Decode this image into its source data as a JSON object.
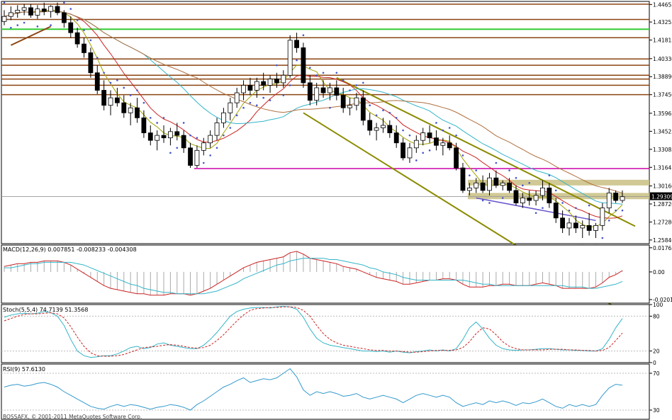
{
  "chart_data": {
    "type": "candlestick",
    "main": {
      "price_axis_ticks": [
        "1.44655",
        "1.43255",
        "1.41815",
        "1.40330",
        "1.38890",
        "1.37450",
        "1.35965",
        "1.34525",
        "1.33085",
        "1.31645",
        "1.30160",
        "1.28720",
        "1.27280",
        "1.25840"
      ],
      "current_price": "1.29309",
      "ylim": [
        1.2555,
        1.449
      ],
      "candles": [
        [
          1.433,
          1.442,
          1.43,
          1.437
        ],
        [
          1.437,
          1.445,
          1.434,
          1.44
        ],
        [
          1.44,
          1.446,
          1.436,
          1.442
        ],
        [
          1.442,
          1.447,
          1.438,
          1.444
        ],
        [
          1.444,
          1.447,
          1.436,
          1.438
        ],
        [
          1.438,
          1.446,
          1.435,
          1.443
        ],
        [
          1.443,
          1.448,
          1.438,
          1.441
        ],
        [
          1.441,
          1.446,
          1.436,
          1.445
        ],
        [
          1.445,
          1.448,
          1.438,
          1.44
        ],
        [
          1.44,
          1.442,
          1.428,
          1.432
        ],
        [
          1.432,
          1.437,
          1.42,
          1.424
        ],
        [
          1.424,
          1.428,
          1.412,
          1.415
        ],
        [
          1.415,
          1.42,
          1.404,
          1.408
        ],
        [
          1.408,
          1.412,
          1.388,
          1.392
        ],
        [
          1.392,
          1.398,
          1.375,
          1.378
        ],
        [
          1.378,
          1.386,
          1.362,
          1.366
        ],
        [
          1.366,
          1.378,
          1.358,
          1.372
        ],
        [
          1.372,
          1.38,
          1.365,
          1.368
        ],
        [
          1.368,
          1.374,
          1.356,
          1.36
        ],
        [
          1.36,
          1.368,
          1.35,
          1.364
        ],
        [
          1.364,
          1.372,
          1.352,
          1.356
        ],
        [
          1.356,
          1.362,
          1.34,
          1.344
        ],
        [
          1.344,
          1.35,
          1.334,
          1.338
        ],
        [
          1.338,
          1.346,
          1.33,
          1.342
        ],
        [
          1.342,
          1.35,
          1.336,
          1.34
        ],
        [
          1.34,
          1.348,
          1.334,
          1.345
        ],
        [
          1.345,
          1.352,
          1.338,
          1.342
        ],
        [
          1.342,
          1.346,
          1.328,
          1.332
        ],
        [
          1.332,
          1.336,
          1.316,
          1.318
        ],
        [
          1.318,
          1.334,
          1.316,
          1.33
        ],
        [
          1.33,
          1.34,
          1.326,
          1.336
        ],
        [
          1.336,
          1.346,
          1.332,
          1.342
        ],
        [
          1.342,
          1.356,
          1.338,
          1.352
        ],
        [
          1.352,
          1.364,
          1.348,
          1.36
        ],
        [
          1.36,
          1.372,
          1.354,
          1.368
        ],
        [
          1.368,
          1.38,
          1.364,
          1.376
        ],
        [
          1.376,
          1.386,
          1.37,
          1.382
        ],
        [
          1.382,
          1.388,
          1.374,
          1.378
        ],
        [
          1.378,
          1.388,
          1.372,
          1.385
        ],
        [
          1.385,
          1.392,
          1.378,
          1.382
        ],
        [
          1.382,
          1.39,
          1.376,
          1.387
        ],
        [
          1.387,
          1.392,
          1.38,
          1.384
        ],
        [
          1.384,
          1.394,
          1.38,
          1.39
        ],
        [
          1.39,
          1.422,
          1.388,
          1.418
        ],
        [
          1.418,
          1.424,
          1.408,
          1.412
        ],
        [
          1.412,
          1.416,
          1.38,
          1.384
        ],
        [
          1.384,
          1.39,
          1.366,
          1.37
        ],
        [
          1.37,
          1.384,
          1.366,
          1.38
        ],
        [
          1.38,
          1.386,
          1.372,
          1.376
        ],
        [
          1.376,
          1.384,
          1.37,
          1.38
        ],
        [
          1.38,
          1.386,
          1.37,
          1.374
        ],
        [
          1.374,
          1.38,
          1.36,
          1.364
        ],
        [
          1.364,
          1.372,
          1.358,
          1.366
        ],
        [
          1.366,
          1.376,
          1.362,
          1.372
        ],
        [
          1.372,
          1.378,
          1.35,
          1.354
        ],
        [
          1.354,
          1.36,
          1.342,
          1.346
        ],
        [
          1.346,
          1.352,
          1.338,
          1.348
        ],
        [
          1.348,
          1.356,
          1.344,
          1.35
        ],
        [
          1.35,
          1.354,
          1.34,
          1.344
        ],
        [
          1.344,
          1.35,
          1.332,
          1.336
        ],
        [
          1.336,
          1.34,
          1.322,
          1.324
        ],
        [
          1.324,
          1.336,
          1.32,
          1.332
        ],
        [
          1.332,
          1.342,
          1.328,
          1.338
        ],
        [
          1.338,
          1.348,
          1.334,
          1.344
        ],
        [
          1.344,
          1.35,
          1.336,
          1.34
        ],
        [
          1.34,
          1.346,
          1.33,
          1.334
        ],
        [
          1.334,
          1.34,
          1.326,
          1.336
        ],
        [
          1.336,
          1.342,
          1.33,
          1.332
        ],
        [
          1.332,
          1.336,
          1.314,
          1.316
        ],
        [
          1.316,
          1.32,
          1.296,
          1.298
        ],
        [
          1.298,
          1.304,
          1.294,
          1.3
        ],
        [
          1.3,
          1.308,
          1.296,
          1.304
        ],
        [
          1.304,
          1.31,
          1.296,
          1.298
        ],
        [
          1.298,
          1.312,
          1.294,
          1.308
        ],
        [
          1.308,
          1.314,
          1.3,
          1.302
        ],
        [
          1.302,
          1.306,
          1.298,
          1.304
        ],
        [
          1.304,
          1.308,
          1.296,
          1.298
        ],
        [
          1.298,
          1.302,
          1.286,
          1.288
        ],
        [
          1.288,
          1.296,
          1.284,
          1.292
        ],
        [
          1.292,
          1.298,
          1.286,
          1.29
        ],
        [
          1.29,
          1.298,
          1.286,
          1.294
        ],
        [
          1.294,
          1.306,
          1.29,
          1.3
        ],
        [
          1.3,
          1.304,
          1.284,
          1.288
        ],
        [
          1.288,
          1.292,
          1.272,
          1.276
        ],
        [
          1.276,
          1.282,
          1.264,
          1.268
        ],
        [
          1.268,
          1.276,
          1.262,
          1.272
        ],
        [
          1.272,
          1.278,
          1.264,
          1.268
        ],
        [
          1.268,
          1.274,
          1.26,
          1.27
        ],
        [
          1.27,
          1.28,
          1.262,
          1.266
        ],
        [
          1.266,
          1.272,
          1.26,
          1.27
        ],
        [
          1.27,
          1.288,
          1.266,
          1.284
        ],
        [
          1.284,
          1.3,
          1.28,
          1.296
        ],
        [
          1.296,
          1.298,
          1.288,
          1.29
        ],
        [
          1.29,
          1.298,
          1.288,
          1.293
        ]
      ],
      "horizontal_levels": {
        "brown": [
          1.4468,
          1.4346,
          1.42,
          1.403,
          1.398,
          1.39,
          1.387,
          1.382,
          1.3745
        ],
        "green": [
          1.4268
        ],
        "magenta": [
          1.3155
        ]
      },
      "zones": [
        [
          1.302,
          1.3065
        ],
        [
          1.291,
          1.296
        ]
      ]
    },
    "macd": {
      "label": "MACD(12,26,9) 0.007851 -0.008233 -0.004308",
      "ticks": [
        "0.017634",
        "0.00",
        "-0.020193"
      ],
      "ylim": [
        -0.0228,
        0.0196
      ],
      "histogram": [
        0.004,
        0.005,
        0.006,
        0.006,
        0.007,
        0.007,
        0.008,
        0.008,
        0.008,
        0.007,
        0.005,
        0.002,
        -0.001,
        -0.004,
        -0.007,
        -0.01,
        -0.012,
        -0.013,
        -0.014,
        -0.015,
        -0.016,
        -0.016,
        -0.017,
        -0.017,
        -0.017,
        -0.016,
        -0.016,
        -0.016,
        -0.017,
        -0.016,
        -0.014,
        -0.012,
        -0.009,
        -0.006,
        -0.003,
        0.0,
        0.003,
        0.005,
        0.007,
        0.008,
        0.009,
        0.01,
        0.011,
        0.014,
        0.015,
        0.013,
        0.01,
        0.009,
        0.008,
        0.007,
        0.006,
        0.004,
        0.003,
        0.002,
        0.0,
        -0.002,
        -0.004,
        -0.005,
        -0.006,
        -0.007,
        -0.009,
        -0.009,
        -0.008,
        -0.007,
        -0.006,
        -0.006,
        -0.005,
        -0.005,
        -0.006,
        -0.009,
        -0.011,
        -0.011,
        -0.011,
        -0.01,
        -0.01,
        -0.009,
        -0.009,
        -0.01,
        -0.01,
        -0.01,
        -0.009,
        -0.008,
        -0.009,
        -0.01,
        -0.012,
        -0.012,
        -0.012,
        -0.012,
        -0.012,
        -0.011,
        -0.008,
        -0.004,
        -0.002,
        0.001
      ],
      "signal": [
        0.003,
        0.003,
        0.004,
        0.005,
        0.006,
        0.006,
        0.007,
        0.007,
        0.007,
        0.007,
        0.007,
        0.006,
        0.005,
        0.003,
        0.001,
        -0.001,
        -0.003,
        -0.005,
        -0.007,
        -0.009,
        -0.01,
        -0.012,
        -0.013,
        -0.014,
        -0.015,
        -0.015,
        -0.016,
        -0.016,
        -0.016,
        -0.016,
        -0.016,
        -0.015,
        -0.014,
        -0.012,
        -0.01,
        -0.008,
        -0.005,
        -0.003,
        -0.001,
        0.001,
        0.003,
        0.005,
        0.006,
        0.008,
        0.009,
        0.01,
        0.01,
        0.01,
        0.01,
        0.009,
        0.009,
        0.008,
        0.007,
        0.006,
        0.005,
        0.003,
        0.002,
        0.0,
        -0.001,
        -0.002,
        -0.004,
        -0.005,
        -0.006,
        -0.006,
        -0.006,
        -0.006,
        -0.006,
        -0.006,
        -0.006,
        -0.006,
        -0.007,
        -0.008,
        -0.009,
        -0.009,
        -0.01,
        -0.01,
        -0.01,
        -0.01,
        -0.01,
        -0.01,
        -0.01,
        -0.01,
        -0.01,
        -0.01,
        -0.01,
        -0.011,
        -0.011,
        -0.011,
        -0.012,
        -0.012,
        -0.011,
        -0.01,
        -0.009,
        -0.007
      ]
    },
    "stochastic": {
      "label": "Stoch(5,5,4) 74.7139 51.3568",
      "ticks": [
        "100",
        "80",
        "20",
        "0"
      ],
      "ylim": [
        0,
        100
      ],
      "main": [
        78,
        82,
        84,
        85,
        84,
        85,
        88,
        86,
        80,
        64,
        40,
        20,
        12,
        9,
        10,
        12,
        12,
        15,
        20,
        26,
        28,
        24,
        26,
        32,
        34,
        30,
        28,
        26,
        24,
        24,
        30,
        40,
        52,
        66,
        80,
        88,
        92,
        94,
        95,
        95,
        94,
        96,
        97,
        96,
        92,
        78,
        58,
        42,
        34,
        30,
        28,
        26,
        24,
        22,
        20,
        20,
        19,
        20,
        18,
        20,
        18,
        17,
        19,
        20,
        22,
        20,
        22,
        20,
        24,
        40,
        60,
        70,
        58,
        42,
        30,
        24,
        22,
        21,
        22,
        22,
        23,
        24,
        24,
        23,
        22,
        22,
        21,
        21,
        20,
        20,
        24,
        40,
        60,
        76
      ],
      "signal": [
        72,
        76,
        80,
        83,
        84,
        84,
        85,
        86,
        84,
        77,
        62,
        44,
        28,
        17,
        12,
        11,
        11,
        12,
        14,
        18,
        22,
        26,
        27,
        28,
        30,
        31,
        30,
        28,
        26,
        25,
        26,
        30,
        38,
        48,
        60,
        72,
        82,
        90,
        93,
        94,
        95,
        95,
        96,
        96,
        95,
        90,
        80,
        64,
        50,
        40,
        34,
        30,
        28,
        26,
        24,
        22,
        21,
        21,
        20,
        20,
        19,
        18,
        18,
        19,
        20,
        21,
        21,
        21,
        22,
        26,
        36,
        50,
        60,
        58,
        48,
        36,
        28,
        24,
        22,
        22,
        22,
        22,
        23,
        23,
        23,
        22,
        22,
        21,
        21,
        20,
        21,
        26,
        38,
        51
      ]
    },
    "rsi": {
      "label": "RSI(9) 57.6130",
      "ticks": [
        "70",
        "30"
      ],
      "ylim": [
        20,
        80
      ],
      "values": [
        55,
        57,
        58,
        56,
        57,
        59,
        60,
        58,
        55,
        50,
        46,
        42,
        38,
        34,
        32,
        31,
        34,
        36,
        34,
        36,
        35,
        33,
        31,
        33,
        34,
        36,
        35,
        33,
        30,
        36,
        40,
        45,
        50,
        55,
        58,
        62,
        65,
        60,
        62,
        64,
        63,
        65,
        70,
        75,
        66,
        52,
        46,
        50,
        48,
        50,
        48,
        45,
        46,
        48,
        44,
        42,
        44,
        46,
        44,
        42,
        38,
        42,
        46,
        48,
        46,
        44,
        46,
        44,
        38,
        34,
        36,
        38,
        36,
        40,
        38,
        40,
        38,
        35,
        38,
        37,
        39,
        42,
        38,
        34,
        32,
        36,
        34,
        36,
        34,
        36,
        46,
        54,
        58,
        57
      ]
    },
    "footer": "BOSSAFX, © 2001-2011 MetaQuotes Software Corp."
  }
}
